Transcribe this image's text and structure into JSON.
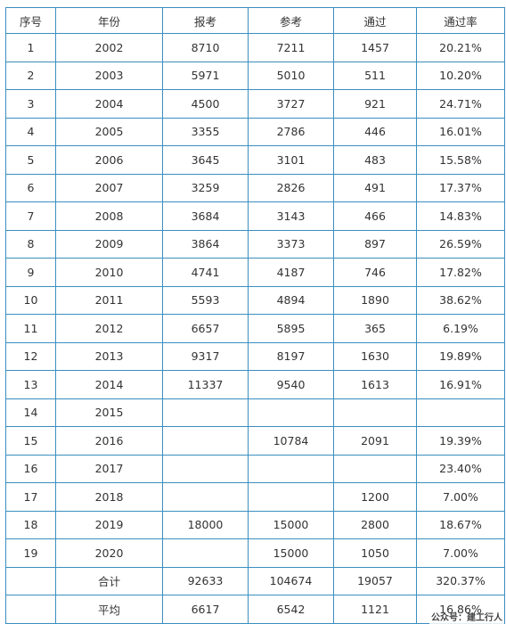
{
  "table": {
    "headers": [
      "序号",
      "年份",
      "报考",
      "参考",
      "通过",
      "通过率"
    ],
    "rows": [
      [
        "1",
        "2002",
        "8710",
        "7211",
        "1457",
        "20.21%"
      ],
      [
        "2",
        "2003",
        "5971",
        "5010",
        "511",
        "10.20%"
      ],
      [
        "3",
        "2004",
        "4500",
        "3727",
        "921",
        "24.71%"
      ],
      [
        "4",
        "2005",
        "3355",
        "2786",
        "446",
        "16.01%"
      ],
      [
        "5",
        "2006",
        "3645",
        "3101",
        "483",
        "15.58%"
      ],
      [
        "6",
        "2007",
        "3259",
        "2826",
        "491",
        "17.37%"
      ],
      [
        "7",
        "2008",
        "3684",
        "3143",
        "466",
        "14.83%"
      ],
      [
        "8",
        "2009",
        "3864",
        "3373",
        "897",
        "26.59%"
      ],
      [
        "9",
        "2010",
        "4741",
        "4187",
        "746",
        "17.82%"
      ],
      [
        "10",
        "2011",
        "5593",
        "4894",
        "1890",
        "38.62%"
      ],
      [
        "11",
        "2012",
        "6657",
        "5895",
        "365",
        "6.19%"
      ],
      [
        "12",
        "2013",
        "9317",
        "8197",
        "1630",
        "19.89%"
      ],
      [
        "13",
        "2014",
        "11337",
        "9540",
        "1613",
        "16.91%"
      ],
      [
        "14",
        "2015",
        "",
        "",
        "",
        ""
      ],
      [
        "15",
        "2016",
        "",
        "10784",
        "2091",
        "19.39%"
      ],
      [
        "16",
        "2017",
        "",
        "",
        "",
        "23.40%"
      ],
      [
        "17",
        "2018",
        "",
        "",
        "1200",
        "7.00%"
      ],
      [
        "18",
        "2019",
        "18000",
        "15000",
        "2800",
        "18.67%"
      ],
      [
        "19",
        "2020",
        "",
        "15000",
        "1050",
        "7.00%"
      ],
      [
        "",
        "合计",
        "92633",
        "104674",
        "19057",
        "320.37%"
      ],
      [
        "",
        "平均",
        "6617",
        "6542",
        "1121",
        "16.86%"
      ]
    ]
  },
  "watermark": "公众号：建工行人"
}
